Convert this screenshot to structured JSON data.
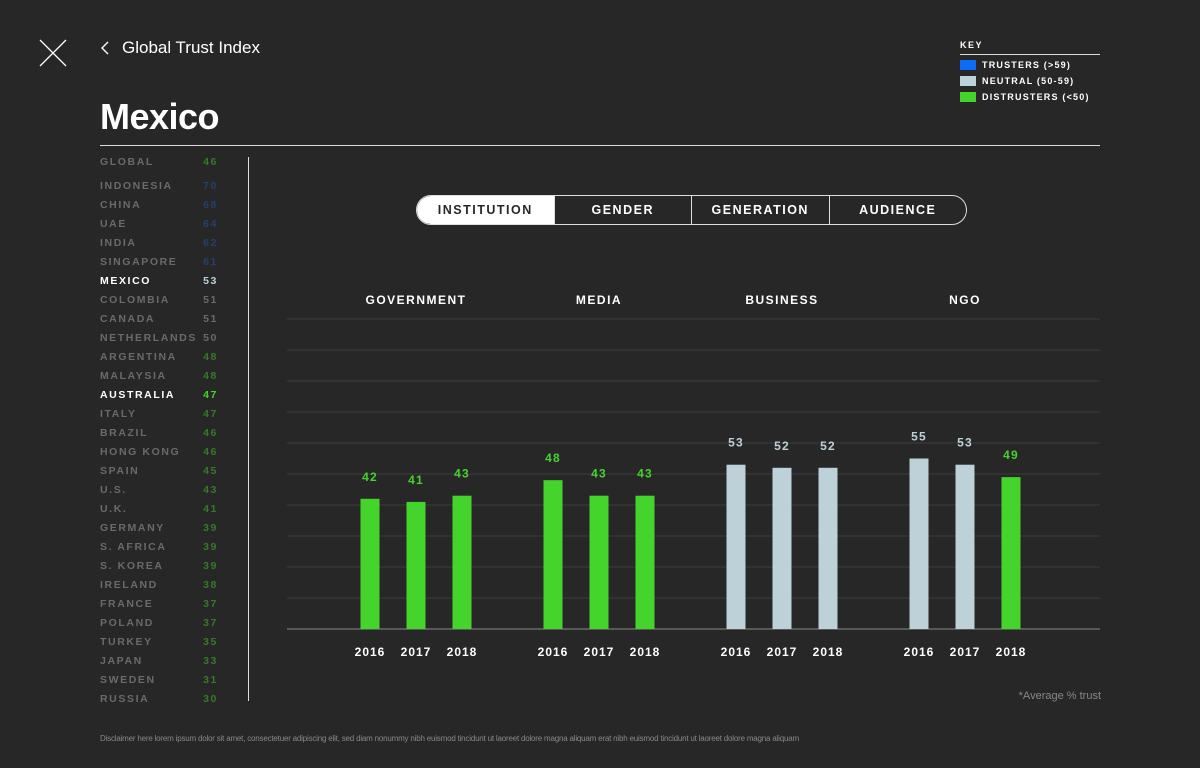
{
  "header": {
    "back_label": "Global Trust Index",
    "country": "Mexico"
  },
  "key": {
    "title": "KEY",
    "items": [
      {
        "label": "TRUSTERS (>59)",
        "color": "#0b6cf5"
      },
      {
        "label": "NEUTRAL (50-59)",
        "color": "#bdd1d9"
      },
      {
        "label": "DISTRUSTERS (<50)",
        "color": "#44d42b"
      }
    ]
  },
  "sidebar": {
    "items": [
      {
        "name": "GLOBAL",
        "value": "46",
        "cat": "d"
      },
      {
        "name": "INDONESIA",
        "value": "70",
        "cat": "t"
      },
      {
        "name": "CHINA",
        "value": "68",
        "cat": "t"
      },
      {
        "name": "UAE",
        "value": "64",
        "cat": "t"
      },
      {
        "name": "INDIA",
        "value": "62",
        "cat": "t"
      },
      {
        "name": "SINGAPORE",
        "value": "61",
        "cat": "t"
      },
      {
        "name": "MEXICO",
        "value": "53",
        "cat": "n",
        "selected": true
      },
      {
        "name": "COLOMBIA",
        "value": "51",
        "cat": "n"
      },
      {
        "name": "CANADA",
        "value": "51",
        "cat": "n"
      },
      {
        "name": "NETHERLANDS",
        "value": "50",
        "cat": "n"
      },
      {
        "name": "ARGENTINA",
        "value": "48",
        "cat": "d"
      },
      {
        "name": "MALAYSIA",
        "value": "48",
        "cat": "d"
      },
      {
        "name": "AUSTRALIA",
        "value": "47",
        "cat": "d",
        "highlight": true
      },
      {
        "name": "ITALY",
        "value": "47",
        "cat": "d"
      },
      {
        "name": "BRAZIL",
        "value": "46",
        "cat": "d"
      },
      {
        "name": "HONG KONG",
        "value": "46",
        "cat": "d"
      },
      {
        "name": "SPAIN",
        "value": "45",
        "cat": "d"
      },
      {
        "name": "U.S.",
        "value": "43",
        "cat": "d"
      },
      {
        "name": "U.K.",
        "value": "41",
        "cat": "d"
      },
      {
        "name": "GERMANY",
        "value": "39",
        "cat": "d"
      },
      {
        "name": "S. AFRICA",
        "value": "39",
        "cat": "d"
      },
      {
        "name": "S. KOREA",
        "value": "39",
        "cat": "d"
      },
      {
        "name": "IRELAND",
        "value": "38",
        "cat": "d"
      },
      {
        "name": "FRANCE",
        "value": "37",
        "cat": "d"
      },
      {
        "name": "POLAND",
        "value": "37",
        "cat": "d"
      },
      {
        "name": "TURKEY",
        "value": "35",
        "cat": "d"
      },
      {
        "name": "JAPAN",
        "value": "33",
        "cat": "d"
      },
      {
        "name": "SWEDEN",
        "value": "31",
        "cat": "d"
      },
      {
        "name": "RUSSIA",
        "value": "30",
        "cat": "d"
      }
    ]
  },
  "tabs": [
    {
      "label": "INSTITUTION",
      "active": true
    },
    {
      "label": "GENDER"
    },
    {
      "label": "GENERATION"
    },
    {
      "label": "AUDIENCE"
    }
  ],
  "chart_data": {
    "type": "bar",
    "groups": [
      "GOVERNMENT",
      "MEDIA",
      "BUSINESS",
      "NGO"
    ],
    "categories": [
      "2016",
      "2017",
      "2018"
    ],
    "series": [
      {
        "name": "GOVERNMENT",
        "values": [
          42,
          41,
          43
        ]
      },
      {
        "name": "MEDIA",
        "values": [
          48,
          43,
          43
        ]
      },
      {
        "name": "BUSINESS",
        "values": [
          53,
          52,
          52
        ]
      },
      {
        "name": "NGO",
        "values": [
          55,
          53,
          49
        ]
      }
    ],
    "ylim": [
      0,
      100
    ],
    "grid": true,
    "gridStep": 10,
    "ylabel": "Average % trust"
  },
  "footer": {
    "note": "*Average % trust",
    "disclaimer": "Disclaimer here lorem ipsum dolor sit amet, consectetuer adipiscing elit, sed diam nonummy nibh euismod tincidunt ut laoreet dolore magna aliquam erat nibh euismod tincidunt ut laoreet dolore magna aliquam"
  }
}
